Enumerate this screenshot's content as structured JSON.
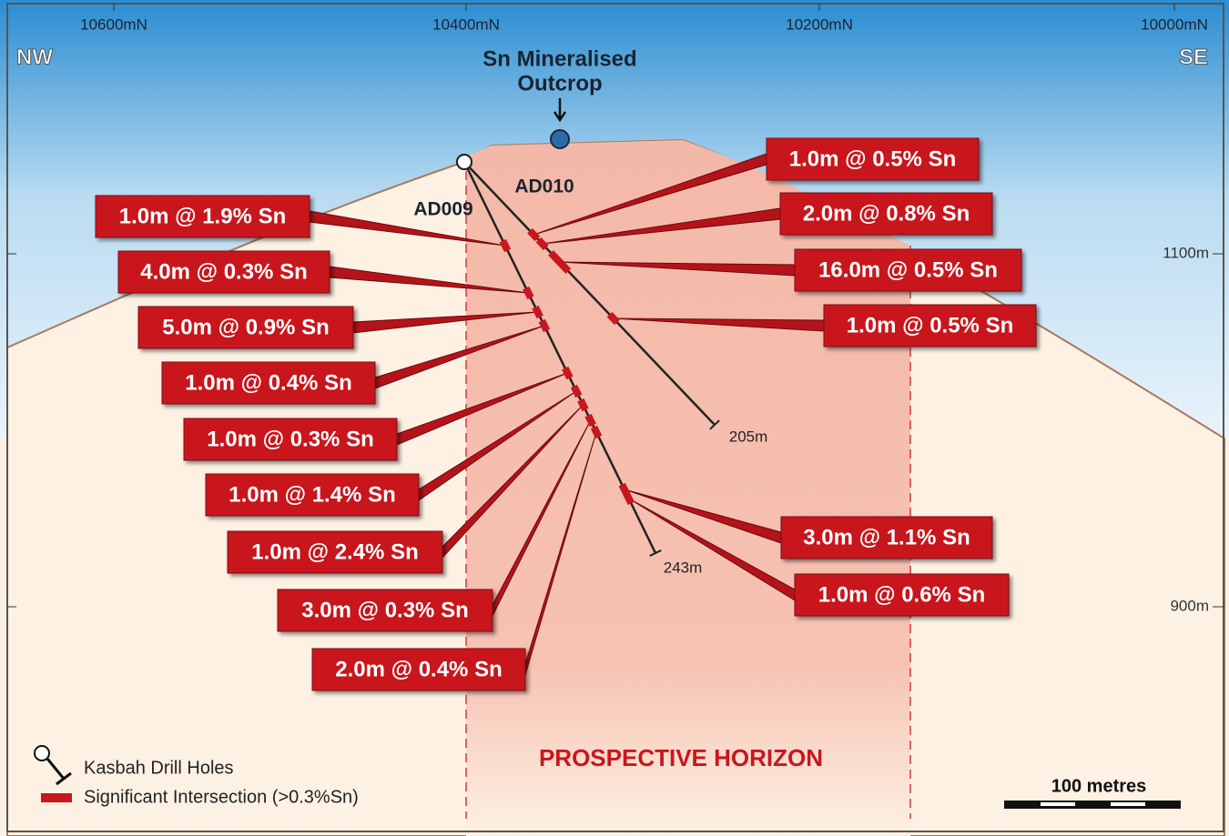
{
  "axis": {
    "top_labels": [
      "10600mN",
      "10400mN",
      "10200mN",
      "10000mN"
    ],
    "right_labels": [
      "1100m",
      "900m"
    ]
  },
  "directions": {
    "left": "NW",
    "right": "SE"
  },
  "outcrop": [
    "Sn Mineralised",
    "Outcrop"
  ],
  "holes": [
    {
      "name": "AD009",
      "depth": "243m",
      "intersections": [
        "1.0m @ 1.9% Sn",
        "4.0m @ 0.3% Sn",
        "5.0m @ 0.9% Sn",
        "1.0m @ 0.4% Sn",
        "1.0m @ 0.3% Sn",
        "1.0m @ 1.4% Sn",
        "1.0m @ 2.4% Sn",
        "3.0m @ 0.3% Sn",
        "2.0m @ 0.4% Sn",
        "3.0m @ 1.1% Sn",
        "1.0m @ 0.6% Sn"
      ]
    },
    {
      "name": "AD010",
      "depth": "205m",
      "intersections": [
        "1.0m @ 0.5% Sn",
        "2.0m @ 0.8% Sn",
        "16.0m @ 0.5% Sn",
        "1.0m @ 0.5% Sn"
      ]
    }
  ],
  "zone": "PROSPECTIVE HORIZON",
  "legend": [
    "Kasbah Drill Holes",
    "Significant Intersection (>0.3%Sn)"
  ],
  "scale": "100 metres"
}
